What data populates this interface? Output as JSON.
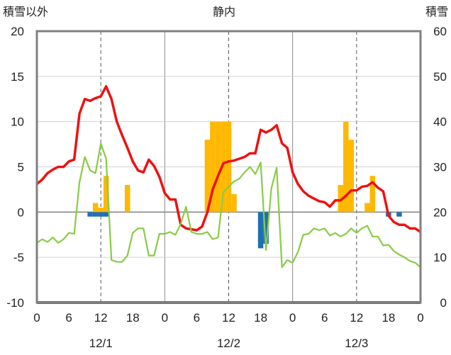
{
  "chart_data": {
    "type": "bar+line",
    "title": "静内",
    "ylabel_left": "積雪以外",
    "ylabel_right": "積雪",
    "ylim_left": [
      -10,
      20
    ],
    "yticks_left": [
      "20",
      "15",
      "10",
      "5",
      "0",
      "-5",
      "-10"
    ],
    "ylim_right": [
      0,
      60
    ],
    "yticks_right": [
      "60",
      "50",
      "40",
      "30",
      "20",
      "10",
      "0"
    ],
    "xlim": [
      0,
      72
    ],
    "x_tick_labels": [
      "0",
      "6",
      "12",
      "18",
      "0",
      "6",
      "12",
      "18",
      "0",
      "6",
      "12",
      "18",
      "0"
    ],
    "date_labels": [
      "12/1",
      "12/2",
      "12/3"
    ],
    "grid": "vertical dashed at hours 12, 36, 60; solid at day boundaries 24, 48; solid zero line",
    "colors": {
      "temperature": "#ee1111",
      "dew_point": "#88cc44",
      "precip_positive": "#ffb800",
      "precip_negative": "#1f6fb5",
      "snow_depth": "#7b3fa0",
      "frame": "#808080"
    },
    "series": [
      {
        "name": "",
        "kind": "line",
        "axis": "left",
        "color": "#ee1111",
        "values": [
          3.1,
          3.6,
          4.3,
          4.7,
          5.0,
          5.0,
          5.6,
          5.8,
          10.9,
          12.5,
          12.3,
          12.6,
          12.8,
          13.9,
          12.5,
          10.0,
          8.5,
          7.1,
          5.6,
          4.6,
          4.4,
          5.8,
          5.1,
          3.9,
          2.1,
          1.4,
          1.4,
          -1.4,
          -1.8,
          -1.9,
          -2.0,
          -1.6,
          0.0,
          2.5,
          4.0,
          5.4,
          5.6,
          5.7,
          5.9,
          6.1,
          6.5,
          6.5,
          9.1,
          8.8,
          9.1,
          9.6,
          7.6,
          7.1,
          4.4,
          3.1,
          2.3,
          1.8,
          1.5,
          1.2,
          1.1,
          0.6,
          1.3,
          1.3,
          1.8,
          2.4,
          2.4,
          2.8,
          2.9,
          3.3,
          2.7,
          2.3,
          -0.4,
          -1.1,
          -1.4,
          -1.4,
          -1.8,
          -1.8,
          -2.2
        ]
      },
      {
        "name": "",
        "kind": "line",
        "axis": "left",
        "color": "#88cc44",
        "values": [
          -3.4,
          -3.0,
          -3.3,
          -2.8,
          -3.4,
          -3.0,
          -2.3,
          -2.4,
          3.3,
          6.1,
          4.6,
          4.3,
          7.6,
          5.9,
          -5.3,
          -5.5,
          -5.5,
          -4.8,
          -2.3,
          -1.8,
          -1.8,
          -4.8,
          -4.8,
          -2.4,
          -2.4,
          -2.2,
          -2.5,
          -1.3,
          0.6,
          -2.2,
          -2.4,
          -2.4,
          -2.2,
          -3.0,
          -2.8,
          2.2,
          2.8,
          3.4,
          3.7,
          4.4,
          5.0,
          4.2,
          5.5,
          -4.2,
          2.6,
          4.9,
          -6.1,
          -5.3,
          -5.6,
          -4.4,
          -2.5,
          -2.4,
          -1.8,
          -2.0,
          -1.8,
          -2.6,
          -2.3,
          -2.7,
          -2.4,
          -1.8,
          -2.3,
          -1.8,
          -1.5,
          -2.7,
          -2.7,
          -3.7,
          -3.6,
          -4.3,
          -4.7,
          -5.0,
          -5.4,
          -5.6,
          -6.1
        ]
      },
      {
        "name": "",
        "kind": "bar",
        "axis": "left",
        "color": "#ffb800",
        "points": [
          [
            11,
            1.0
          ],
          [
            12,
            0.5
          ],
          [
            13,
            4.0
          ],
          [
            17,
            3.0
          ],
          [
            32,
            8.0
          ],
          [
            33,
            10.0
          ],
          [
            34,
            10.0
          ],
          [
            35,
            10.0
          ],
          [
            36,
            10.0
          ],
          [
            37,
            2.0
          ],
          [
            57,
            3.0
          ],
          [
            58,
            10.0
          ],
          [
            59,
            8.0
          ],
          [
            62,
            1.0
          ],
          [
            63,
            4.0
          ]
        ]
      },
      {
        "name": "",
        "kind": "bar",
        "axis": "left",
        "color": "#1f6fb5",
        "points": [
          [
            10,
            -0.5
          ],
          [
            11,
            -0.5
          ],
          [
            12,
            -0.5
          ],
          [
            13,
            -0.5
          ],
          [
            42,
            -4.0
          ],
          [
            43,
            -3.5
          ],
          [
            66,
            -0.5
          ],
          [
            68,
            -0.5
          ]
        ]
      },
      {
        "name": "",
        "kind": "line",
        "axis": "right",
        "color": "#7b3fa0",
        "values": [
          0,
          0
        ]
      }
    ]
  }
}
